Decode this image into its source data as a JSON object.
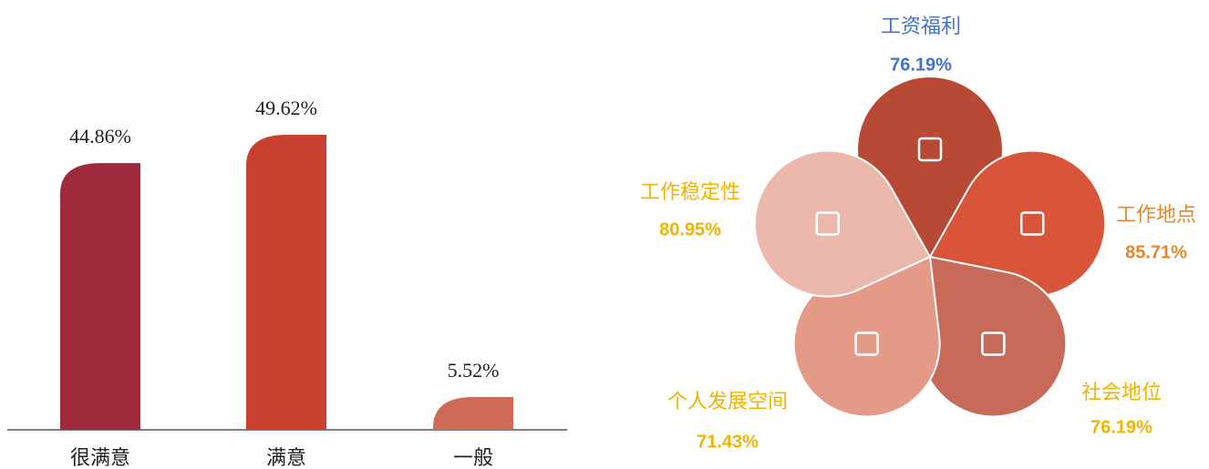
{
  "chart_data": [
    {
      "type": "bar",
      "categories": [
        "很满意",
        "满意",
        "一般"
      ],
      "values": [
        44.86,
        49.62,
        5.52
      ],
      "value_labels": [
        "44.86%",
        "49.62%",
        "5.52%"
      ],
      "colors": [
        "#9e2a3c",
        "#c8402f",
        "#cf6a56"
      ]
    },
    {
      "type": "petal",
      "categories": [
        "工资福利",
        "工作地点",
        "社会地位",
        "个人发展空间",
        "工作稳定性"
      ],
      "values": [
        76.19,
        85.71,
        76.19,
        71.43,
        80.95
      ],
      "value_labels": [
        "76.19%",
        "85.71%",
        "76.19%",
        "71.43%",
        "80.95%"
      ],
      "colors": [
        "#b84a35",
        "#d9553a",
        "#c86a5a",
        "#e59a88",
        "#ebb8ab"
      ],
      "label_colors": [
        "#4472c4",
        "#e8862b",
        "#f0b400",
        "#f0b400",
        "#f0b400"
      ]
    }
  ]
}
